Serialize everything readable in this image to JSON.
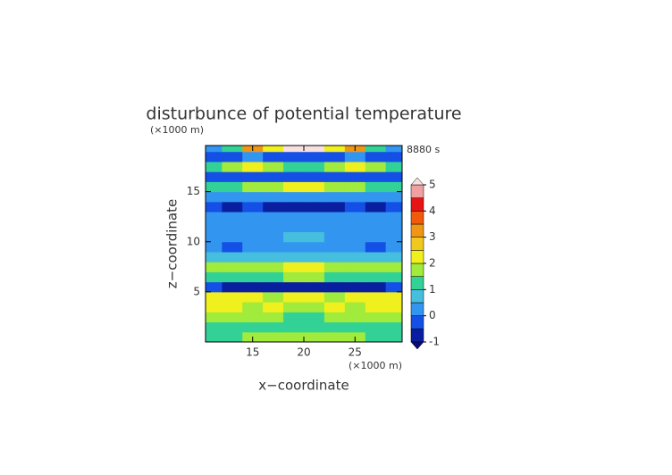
{
  "chart_data": {
    "type": "contour",
    "title": "disturbunce of potential temperature",
    "y_unit": "(×1000 m)",
    "x_unit": "(×1000 m)",
    "time_label": "8880 s",
    "xlabel": "x−coordinate",
    "ylabel": "z−coordinate",
    "xlim": [
      10.4,
      29.6
    ],
    "ylim": [
      0,
      19.6
    ],
    "xticks": [
      15,
      20,
      25
    ],
    "yticks": [
      5,
      10,
      15
    ],
    "x": [
      11,
      13,
      15,
      17,
      19,
      21,
      23,
      25,
      27,
      29
    ],
    "z": [
      0.5,
      1.5,
      2.5,
      3.5,
      4.5,
      5.5,
      6.5,
      7.5,
      8.5,
      9.5,
      10.5,
      11.5,
      12.5,
      13.5,
      14.5,
      15.5,
      16.5,
      17.5,
      18.5,
      19.5
    ],
    "values": [
      [
        1.2,
        1.4,
        1.6,
        1.7,
        1.5,
        1.5,
        1.7,
        1.6,
        1.4,
        1.2
      ],
      [
        1.1,
        1.3,
        1.2,
        1.4,
        1.2,
        1.2,
        1.4,
        1.2,
        1.3,
        1.1
      ],
      [
        1.8,
        1.6,
        1.8,
        1.6,
        1.3,
        1.3,
        1.6,
        1.8,
        1.6,
        1.8
      ],
      [
        2.1,
        2.0,
        1.8,
        2.1,
        1.6,
        1.6,
        2.1,
        1.8,
        2.0,
        2.1
      ],
      [
        2.0,
        2.1,
        2.2,
        1.9,
        2.0,
        2.0,
        1.9,
        2.2,
        2.1,
        2.0
      ],
      [
        -0.4,
        -0.6,
        -0.8,
        -0.6,
        -0.9,
        -0.9,
        -0.6,
        -0.8,
        -0.6,
        -0.4
      ],
      [
        1.1,
        1.2,
        1.4,
        1.3,
        1.6,
        1.6,
        1.3,
        1.4,
        1.2,
        1.1
      ],
      [
        1.6,
        1.7,
        1.8,
        1.8,
        2.0,
        2.0,
        1.8,
        1.8,
        1.7,
        1.6
      ],
      [
        0.7,
        0.8,
        0.6,
        0.9,
        0.8,
        0.8,
        0.9,
        0.6,
        0.8,
        0.7
      ],
      [
        0.2,
        -0.2,
        0.1,
        0.2,
        0.0,
        0.0,
        0.2,
        0.1,
        -0.2,
        0.2
      ],
      [
        0.3,
        0.4,
        0.2,
        0.3,
        0.6,
        0.6,
        0.3,
        0.2,
        0.4,
        0.3
      ],
      [
        0.4,
        0.1,
        0.3,
        0.4,
        0.3,
        0.3,
        0.4,
        0.3,
        0.1,
        0.4
      ],
      [
        0.2,
        0.3,
        0.2,
        0.2,
        0.3,
        0.3,
        0.2,
        0.2,
        0.3,
        0.2
      ],
      [
        -0.3,
        -0.6,
        -0.5,
        -0.8,
        -0.6,
        -0.6,
        -0.8,
        -0.5,
        -0.6,
        -0.3
      ],
      [
        0.3,
        0.2,
        0.4,
        0.3,
        0.2,
        0.2,
        0.3,
        0.4,
        0.2,
        0.3
      ],
      [
        1.2,
        1.3,
        1.6,
        1.8,
        2.1,
        2.1,
        1.8,
        1.6,
        1.3,
        1.2
      ],
      [
        -0.4,
        -0.5,
        -0.2,
        -0.5,
        -0.3,
        -0.3,
        -0.5,
        -0.2,
        -0.5,
        -0.4
      ],
      [
        1.0,
        1.6,
        2.1,
        1.7,
        1.4,
        1.4,
        1.7,
        2.1,
        1.6,
        1.0
      ],
      [
        -0.5,
        -0.3,
        0.1,
        -0.2,
        -0.4,
        -0.4,
        -0.2,
        0.1,
        -0.3,
        -0.5
      ],
      [
        0.2,
        1.4,
        3.3,
        2.2,
        5.2,
        5.2,
        2.2,
        3.3,
        1.4,
        0.2
      ]
    ],
    "levels": [
      -1,
      -0.5,
      0,
      0.5,
      1,
      1.5,
      2,
      2.5,
      3,
      3.5,
      4,
      4.5,
      5
    ],
    "colors": [
      "#0a1ea0",
      "#1450e6",
      "#3296f0",
      "#46bede",
      "#32d296",
      "#a0eb3c",
      "#f0f01e",
      "#f0c81e",
      "#f09614",
      "#f05a0a",
      "#e61414",
      "#f0a0a0"
    ],
    "under_color": "#0a0a78",
    "over_color": "#f8e0e0",
    "cticks": [
      -1,
      0,
      1,
      2,
      3,
      4,
      5
    ]
  }
}
